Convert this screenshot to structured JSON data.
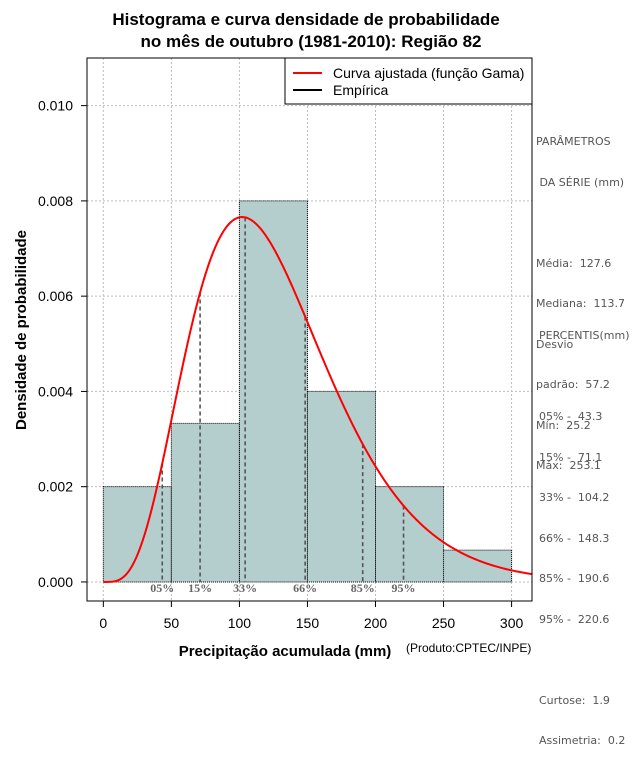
{
  "chart_data": {
    "type": "histogram",
    "title": [
      "Histograma e curva densidade de probabilidade",
      "no mês de outubro (1981-2010): Região 82"
    ],
    "xlabel": "Precipitação acumulada (mm)",
    "ylabel": "Densidade de probabilidade",
    "credit": "(Produto:CPTEC/INPE)",
    "xlim": [
      -12,
      315
    ],
    "ylim": [
      -0.0004,
      0.011
    ],
    "xticks": [
      0,
      50,
      100,
      150,
      200,
      250,
      300
    ],
    "yticks": [
      0.0,
      0.002,
      0.004,
      0.006,
      0.008,
      0.01
    ],
    "ytick_labels": [
      "0.000",
      "0.002",
      "0.004",
      "0.006",
      "0.008",
      "0.010"
    ],
    "grid": true,
    "bins": [
      {
        "x0": 0,
        "x1": 50,
        "density": 0.002
      },
      {
        "x0": 50,
        "x1": 100,
        "density": 0.00333
      },
      {
        "x0": 100,
        "x1": 150,
        "density": 0.008
      },
      {
        "x0": 150,
        "x1": 200,
        "density": 0.004
      },
      {
        "x0": 200,
        "x1": 250,
        "density": 0.002
      },
      {
        "x0": 250,
        "x1": 300,
        "density": 0.000667
      }
    ],
    "curve": {
      "name": "Curva ajustada (função Gama)",
      "shape": 5.0,
      "scale": 25.5,
      "color": "#ff0000"
    },
    "legend": {
      "position": "top-right",
      "entries": [
        {
          "label": "Curva ajustada (função Gama)",
          "color": "#ff0000"
        },
        {
          "label": "Empírica",
          "color": "#000000"
        }
      ]
    },
    "percentile_lines": [
      {
        "label": "05%",
        "x": 43.3
      },
      {
        "label": "15%",
        "x": 71.1
      },
      {
        "label": "33%",
        "x": 104.2
      },
      {
        "label": "66%",
        "x": 148.3
      },
      {
        "label": "85%",
        "x": 190.6
      },
      {
        "label": "95%",
        "x": 220.6
      }
    ],
    "colors": {
      "bar_fill": "#b4cdcd",
      "bar_edge": "#000000",
      "grid": "#bebebe",
      "curve": "#ff0000",
      "percentile": "#555555"
    }
  },
  "stats": {
    "params_title": [
      "PARÂMETROS",
      " DA SÉRIE (mm)"
    ],
    "params": [
      "Média:  127.6",
      "Mediana:  113.7",
      "Desvio",
      "padrão:  57.2",
      "Mín:  25.2",
      "Máx:  253.1"
    ],
    "percentis_title": "PERCENTIS(mm)",
    "percentis": [
      "05% -  43.3",
      "15% -  71.1",
      "33% -  104.2",
      "66% -  148.3",
      "85% -  190.6",
      "95% -  220.6"
    ],
    "shape_stats": [
      "Curtose:  1.9",
      "Assimetria:  0.2"
    ]
  }
}
